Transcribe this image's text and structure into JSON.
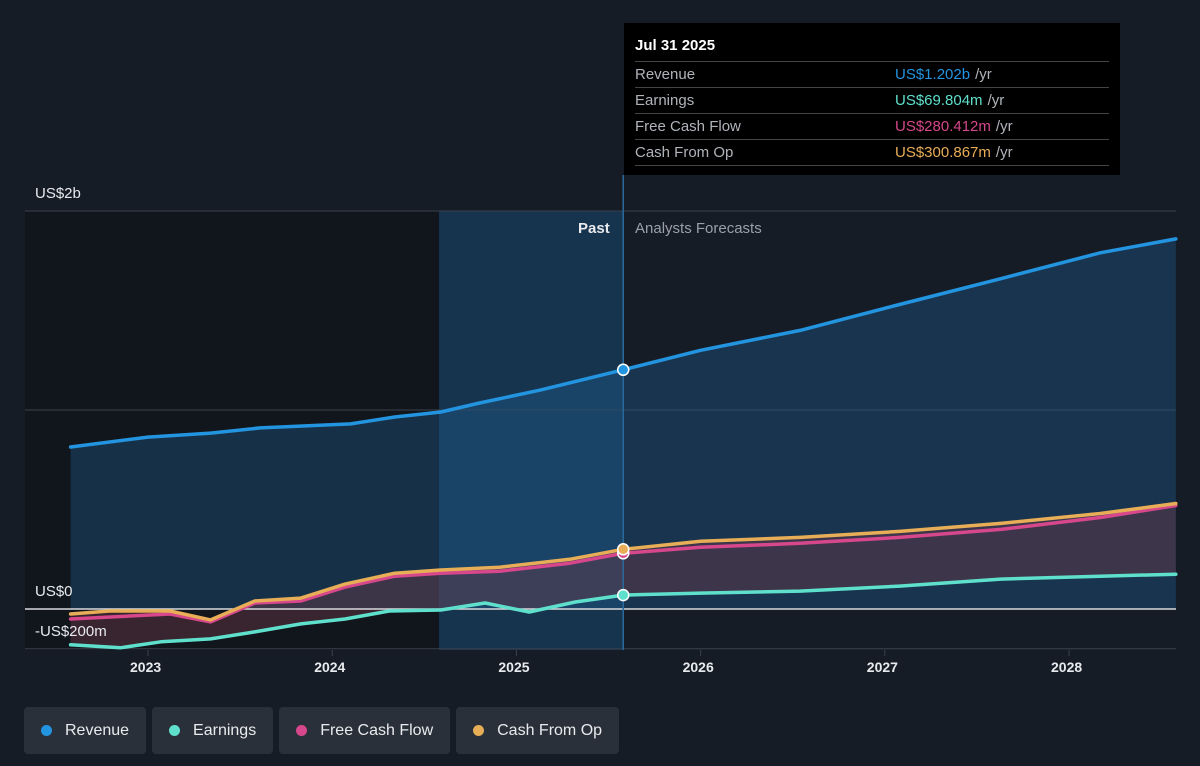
{
  "tooltip": {
    "date": "Jul 31 2025",
    "unit": "/yr",
    "rows": [
      {
        "label": "Revenue",
        "value": "US$1.202b",
        "color": "#2394df"
      },
      {
        "label": "Earnings",
        "value": "US$69.804m",
        "color": "#5fe0cc"
      },
      {
        "label": "Free Cash Flow",
        "value": "US$280.412m",
        "color": "#d6478b"
      },
      {
        "label": "Cash From Op",
        "value": "US$300.867m",
        "color": "#e8ad57"
      }
    ]
  },
  "labels": {
    "past": "Past",
    "forecast": "Analysts Forecasts"
  },
  "chart_data": {
    "type": "line",
    "y_tick_labels": [
      "US$2b",
      "US$0",
      "-US$200m"
    ],
    "x_tick_labels": [
      "2023",
      "2024",
      "2025",
      "2026",
      "2027",
      "2028"
    ],
    "ylim": [
      -0.2,
      2.0
    ],
    "y_unit": "US$ billions",
    "xlim": [
      2022.4,
      2028.6
    ],
    "past_region": [
      2024.58,
      2025.58
    ],
    "marker_x": 2025.58,
    "series": [
      {
        "name": "Revenue",
        "color": "#2394df",
        "points": [
          [
            2022.58,
            0.814
          ],
          [
            2023.0,
            0.864
          ],
          [
            2023.34,
            0.884
          ],
          [
            2023.61,
            0.91
          ],
          [
            2024.1,
            0.93
          ],
          [
            2024.34,
            0.965
          ],
          [
            2024.59,
            0.99
          ],
          [
            2024.8,
            1.035
          ],
          [
            2025.13,
            1.1
          ],
          [
            2025.58,
            1.202
          ],
          [
            2026.0,
            1.3
          ],
          [
            2026.54,
            1.4
          ],
          [
            2027.08,
            1.53
          ],
          [
            2027.63,
            1.66
          ],
          [
            2028.17,
            1.79
          ],
          [
            2028.58,
            1.86
          ]
        ]
      },
      {
        "name": "Earnings",
        "color": "#5fe0cc",
        "points": [
          [
            2022.58,
            -0.18
          ],
          [
            2022.85,
            -0.195
          ],
          [
            2023.07,
            -0.165
          ],
          [
            2023.34,
            -0.15
          ],
          [
            2023.58,
            -0.115
          ],
          [
            2023.83,
            -0.075
          ],
          [
            2024.07,
            -0.05
          ],
          [
            2024.31,
            -0.01
          ],
          [
            2024.59,
            -0.005
          ],
          [
            2024.83,
            0.03
          ],
          [
            2025.07,
            -0.015
          ],
          [
            2025.32,
            0.035
          ],
          [
            2025.58,
            0.0698
          ],
          [
            2026.0,
            0.08
          ],
          [
            2026.54,
            0.09
          ],
          [
            2027.08,
            0.115
          ],
          [
            2027.63,
            0.15
          ],
          [
            2028.17,
            0.165
          ],
          [
            2028.58,
            0.175
          ]
        ]
      },
      {
        "name": "Free Cash Flow",
        "color": "#d6478b",
        "points": [
          [
            2022.58,
            -0.05
          ],
          [
            2023.12,
            -0.025
          ],
          [
            2023.34,
            -0.065
          ],
          [
            2023.58,
            0.03
          ],
          [
            2023.83,
            0.04
          ],
          [
            2024.07,
            0.11
          ],
          [
            2024.34,
            0.165
          ],
          [
            2024.59,
            0.18
          ],
          [
            2024.91,
            0.19
          ],
          [
            2025.29,
            0.23
          ],
          [
            2025.58,
            0.28
          ],
          [
            2026.0,
            0.31
          ],
          [
            2026.54,
            0.33
          ],
          [
            2027.08,
            0.36
          ],
          [
            2027.63,
            0.4
          ],
          [
            2028.17,
            0.46
          ],
          [
            2028.58,
            0.52
          ]
        ]
      },
      {
        "name": "Cash From Op",
        "color": "#e8ad57",
        "points": [
          [
            2022.58,
            -0.025
          ],
          [
            2022.79,
            -0.01
          ],
          [
            2023.12,
            -0.01
          ],
          [
            2023.34,
            -0.055
          ],
          [
            2023.58,
            0.04
          ],
          [
            2023.83,
            0.055
          ],
          [
            2024.07,
            0.125
          ],
          [
            2024.34,
            0.18
          ],
          [
            2024.59,
            0.196
          ],
          [
            2024.91,
            0.21
          ],
          [
            2025.29,
            0.25
          ],
          [
            2025.58,
            0.3
          ],
          [
            2026.0,
            0.34
          ],
          [
            2026.54,
            0.36
          ],
          [
            2027.08,
            0.39
          ],
          [
            2027.63,
            0.43
          ],
          [
            2028.17,
            0.48
          ],
          [
            2028.58,
            0.53
          ]
        ]
      }
    ]
  },
  "legend": [
    "Revenue",
    "Earnings",
    "Free Cash Flow",
    "Cash From Op"
  ]
}
